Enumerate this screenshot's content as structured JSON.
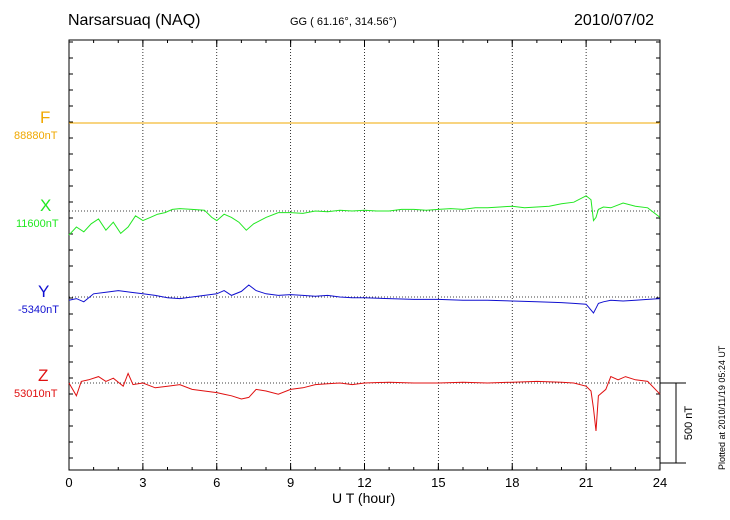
{
  "header": {
    "station": "Narsarsuaq (NAQ)",
    "coords": "GG ( 61.16°, 314.56°)",
    "date": "2010/07/02"
  },
  "components": [
    {
      "name": "F",
      "baseline": "88880nT",
      "color": "#f0a800"
    },
    {
      "name": "X",
      "baseline": "11600nT",
      "color": "#22e822"
    },
    {
      "name": "Y",
      "baseline": "-5340nT",
      "color": "#1010d0"
    },
    {
      "name": "Z",
      "baseline": "53010nT",
      "color": "#e01010"
    }
  ],
  "scale_bar_label": "500 nT",
  "plotted_note": "Plotted at 2010/11/19 05:24 UT",
  "chart_data": {
    "type": "line",
    "xlabel": "U T (hour)",
    "xlim": [
      0,
      24
    ],
    "xticks": [
      "0",
      "3",
      "6",
      "9",
      "12",
      "15",
      "18",
      "21",
      "24"
    ],
    "y_unit": "nT",
    "series": [
      {
        "name": "F",
        "baseline": 88880,
        "x": [
          0,
          24
        ],
        "values": [
          0,
          0
        ]
      },
      {
        "name": "X",
        "baseline": 11600,
        "x": [
          0,
          0.3,
          0.6,
          0.9,
          1.2,
          1.5,
          1.8,
          2.1,
          2.4,
          2.7,
          3.0,
          3.3,
          3.6,
          3.9,
          4.2,
          4.5,
          5.0,
          5.5,
          5.8,
          6.0,
          6.3,
          6.6,
          6.9,
          7.2,
          7.5,
          8.0,
          8.5,
          9.0,
          9.5,
          10,
          10.5,
          11,
          11.5,
          12,
          12.5,
          13,
          13.5,
          14,
          14.5,
          15,
          15.5,
          16,
          16.5,
          17,
          17.5,
          18,
          18.5,
          19,
          19.5,
          20,
          20.5,
          21.0,
          21.2,
          21.3,
          21.4,
          21.5,
          21.7,
          22,
          22.5,
          23,
          23.5,
          24
        ],
        "values": [
          -150,
          -100,
          -130,
          -80,
          -50,
          -120,
          -70,
          -140,
          -100,
          -30,
          -60,
          -40,
          -20,
          -10,
          10,
          15,
          10,
          5,
          -40,
          -60,
          -20,
          -40,
          -70,
          -120,
          -80,
          -40,
          -10,
          -10,
          -15,
          0,
          -5,
          5,
          0,
          5,
          0,
          0,
          10,
          10,
          5,
          10,
          15,
          10,
          20,
          20,
          25,
          30,
          20,
          25,
          30,
          45,
          55,
          95,
          70,
          -60,
          -40,
          10,
          25,
          20,
          50,
          30,
          20,
          -40
        ]
      },
      {
        "name": "Y",
        "baseline": -5340,
        "x": [
          0,
          0.3,
          0.6,
          1.0,
          1.5,
          2.0,
          2.5,
          3.0,
          3.5,
          4.0,
          4.5,
          5.0,
          5.5,
          6.0,
          6.3,
          6.6,
          7.0,
          7.3,
          7.6,
          8.0,
          8.5,
          9.0,
          9.5,
          10,
          10.5,
          11,
          11.5,
          12,
          13,
          14,
          15,
          16,
          17,
          18,
          19,
          20,
          20.5,
          21,
          21.3,
          21.4,
          21.5,
          21.7,
          22,
          22.5,
          23,
          23.5,
          24
        ],
        "values": [
          -20,
          -10,
          -30,
          20,
          30,
          40,
          30,
          20,
          10,
          -5,
          -10,
          0,
          10,
          20,
          40,
          10,
          35,
          75,
          40,
          20,
          10,
          15,
          10,
          5,
          10,
          0,
          -5,
          -5,
          -10,
          -15,
          -15,
          -20,
          -20,
          -25,
          -30,
          -35,
          -40,
          -45,
          -100,
          -70,
          -40,
          -30,
          -20,
          -25,
          -20,
          -15,
          -10
        ]
      },
      {
        "name": "Z",
        "baseline": 53010,
        "x": [
          0,
          0.3,
          0.5,
          0.8,
          1.2,
          1.5,
          1.8,
          2.2,
          2.4,
          2.6,
          3.0,
          3.5,
          4.0,
          4.5,
          5.0,
          5.5,
          6.0,
          6.3,
          6.6,
          7.0,
          7.3,
          7.6,
          8.0,
          8.5,
          9.0,
          9.5,
          10,
          10.5,
          11,
          11.5,
          12,
          13,
          14,
          15,
          16,
          17,
          18,
          19,
          20,
          20.5,
          21,
          21.2,
          21.3,
          21.4,
          21.5,
          21.8,
          22,
          22.3,
          22.6,
          23,
          23.5,
          24
        ],
        "values": [
          0,
          -80,
          10,
          20,
          40,
          10,
          30,
          -20,
          60,
          -10,
          0,
          -30,
          -20,
          -10,
          -40,
          -50,
          -60,
          -70,
          -80,
          -100,
          -90,
          -40,
          -50,
          -70,
          -40,
          -30,
          -10,
          -5,
          0,
          -10,
          0,
          5,
          0,
          0,
          5,
          0,
          5,
          10,
          5,
          0,
          -20,
          -50,
          -160,
          -300,
          -80,
          -40,
          40,
          20,
          40,
          20,
          10,
          -70
        ]
      }
    ],
    "grid": true
  }
}
